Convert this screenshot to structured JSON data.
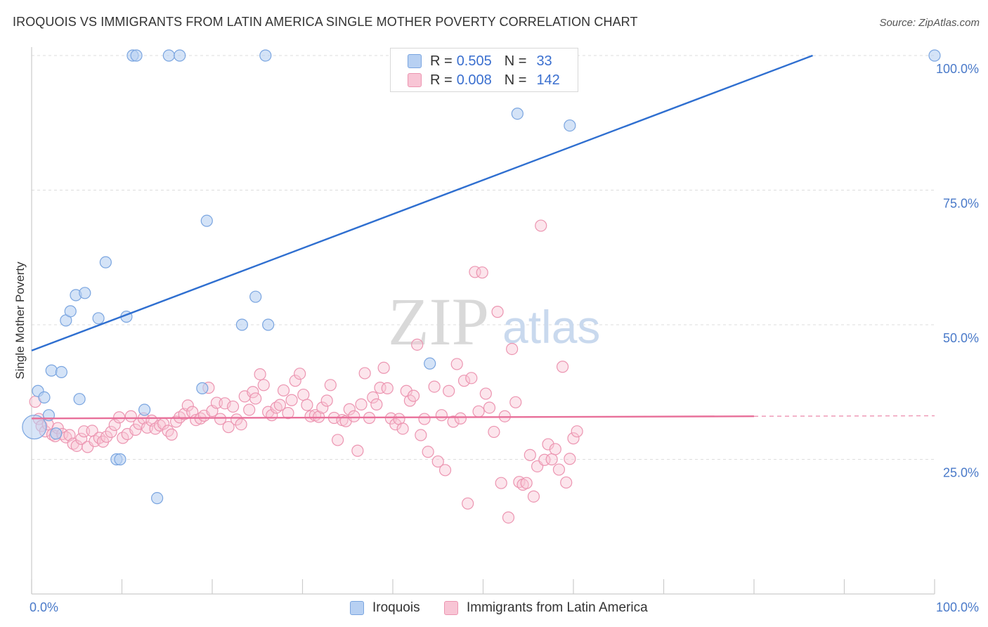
{
  "header": {
    "title": "IROQUOIS VS IMMIGRANTS FROM LATIN AMERICA SINGLE MOTHER POVERTY CORRELATION CHART",
    "source": "Source: ZipAtlas.com"
  },
  "watermark": {
    "zip": "ZIP",
    "atlas": "atlas"
  },
  "legend": {
    "r_label": "R =",
    "n_label": "N =",
    "rows": [
      {
        "r": "0.505",
        "n": "33"
      },
      {
        "r": "0.008",
        "n": "142"
      }
    ]
  },
  "colors": {
    "iroquois_fill": "#b7d0f2",
    "iroquois_stroke": "#7aa5e0",
    "iroquois_line": "#2f6fd0",
    "latin_fill": "#f8c5d5",
    "latin_stroke": "#ec95b1",
    "latin_line": "#e8709a",
    "tick_label": "#4a7ac9",
    "grid": "#dddddd"
  },
  "chart_data": {
    "type": "scatter",
    "ylabel": "Single Mother Poverty",
    "xlim": [
      0,
      100
    ],
    "ylim": [
      0,
      100
    ],
    "x_tick_labels": [
      "0.0%",
      "100.0%"
    ],
    "y_ticks": [
      25,
      50,
      75,
      100
    ],
    "y_tick_labels": [
      "25.0%",
      "50.0%",
      "75.0%",
      "100.0%"
    ],
    "grid": "horizontal dashed",
    "legend_position": "top-center",
    "series": [
      {
        "name": "Iroquois",
        "r": 0.505,
        "n": 33,
        "trend": {
          "x": [
            0,
            86.5
          ],
          "y": [
            45.2,
            100
          ]
        },
        "points": [
          [
            0.3,
            31
          ],
          [
            0.7,
            37.7
          ],
          [
            1.4,
            36.5
          ],
          [
            1.9,
            33.2
          ],
          [
            2.2,
            41.5
          ],
          [
            2.7,
            29.8
          ],
          [
            3.3,
            41.2
          ],
          [
            3.8,
            50.8
          ],
          [
            4.3,
            52.5
          ],
          [
            4.9,
            55.5
          ],
          [
            5.3,
            36.2
          ],
          [
            5.9,
            55.9
          ],
          [
            7.4,
            51.2
          ],
          [
            8.2,
            61.6
          ],
          [
            9.4,
            25
          ],
          [
            9.8,
            25
          ],
          [
            10.5,
            51.5
          ],
          [
            11.2,
            100
          ],
          [
            11.6,
            100
          ],
          [
            12.5,
            34.2
          ],
          [
            13.9,
            17.8
          ],
          [
            15.2,
            100
          ],
          [
            16.4,
            100
          ],
          [
            18.9,
            38.2
          ],
          [
            19.4,
            69.3
          ],
          [
            23.3,
            50
          ],
          [
            24.8,
            55.2
          ],
          [
            25.9,
            100
          ],
          [
            26.2,
            50
          ],
          [
            44.1,
            42.8
          ],
          [
            53.8,
            89.2
          ],
          [
            59.6,
            87
          ],
          [
            100,
            100
          ]
        ]
      },
      {
        "name": "Immigrants from Latin America",
        "r": 0.008,
        "n": 142,
        "trend": {
          "x": [
            0,
            80
          ],
          "y": [
            32.6,
            33.0
          ]
        },
        "trend_dashed": {
          "x": [
            80,
            100
          ],
          "y": [
            33.0,
            33.1
          ]
        },
        "points": [
          [
            0.4,
            35.7
          ],
          [
            0.8,
            32.5
          ],
          [
            1.1,
            31.2
          ],
          [
            1.5,
            30.2
          ],
          [
            1.8,
            31.5
          ],
          [
            2.3,
            29.6
          ],
          [
            2.6,
            29.3
          ],
          [
            2.9,
            30.8
          ],
          [
            3.4,
            29.7
          ],
          [
            3.8,
            29.1
          ],
          [
            4.2,
            29.5
          ],
          [
            4.6,
            27.9
          ],
          [
            5.0,
            27.5
          ],
          [
            5.5,
            28.8
          ],
          [
            5.8,
            30.2
          ],
          [
            6.2,
            27.3
          ],
          [
            6.7,
            30.3
          ],
          [
            7.0,
            28.4
          ],
          [
            7.5,
            29.0
          ],
          [
            7.9,
            28.3
          ],
          [
            8.3,
            29.2
          ],
          [
            8.8,
            30.1
          ],
          [
            9.2,
            31.4
          ],
          [
            9.7,
            32.8
          ],
          [
            10.1,
            29.0
          ],
          [
            10.6,
            29.7
          ],
          [
            11.0,
            33.0
          ],
          [
            11.5,
            30.5
          ],
          [
            11.9,
            31.6
          ],
          [
            12.4,
            32.6
          ],
          [
            12.8,
            30.9
          ],
          [
            13.3,
            32.2
          ],
          [
            13.7,
            30.7
          ],
          [
            14.2,
            31.3
          ],
          [
            14.6,
            31.6
          ],
          [
            15.1,
            30.3
          ],
          [
            15.5,
            29.6
          ],
          [
            16.0,
            32.0
          ],
          [
            16.4,
            32.8
          ],
          [
            16.9,
            33.4
          ],
          [
            17.3,
            35.0
          ],
          [
            17.8,
            33.8
          ],
          [
            18.2,
            32.3
          ],
          [
            18.7,
            32.6
          ],
          [
            19.1,
            33.1
          ],
          [
            19.6,
            38.3
          ],
          [
            20.0,
            34.0
          ],
          [
            20.5,
            35.5
          ],
          [
            20.9,
            32.5
          ],
          [
            21.4,
            35.4
          ],
          [
            21.8,
            31.0
          ],
          [
            22.3,
            34.8
          ],
          [
            22.7,
            32.4
          ],
          [
            23.2,
            31.5
          ],
          [
            23.6,
            36.7
          ],
          [
            24.1,
            34.2
          ],
          [
            24.5,
            37.5
          ],
          [
            24.8,
            36.3
          ],
          [
            25.3,
            40.8
          ],
          [
            25.7,
            38.8
          ],
          [
            26.2,
            33.8
          ],
          [
            26.6,
            33.2
          ],
          [
            27.1,
            34.6
          ],
          [
            27.5,
            35.1
          ],
          [
            27.9,
            37.8
          ],
          [
            28.4,
            33.6
          ],
          [
            28.8,
            36.0
          ],
          [
            29.2,
            39.6
          ],
          [
            29.7,
            40.9
          ],
          [
            30.1,
            37.0
          ],
          [
            30.5,
            35.1
          ],
          [
            30.9,
            33.0
          ],
          [
            31.4,
            33.2
          ],
          [
            31.8,
            32.9
          ],
          [
            32.2,
            34.6
          ],
          [
            32.7,
            35.9
          ],
          [
            33.1,
            38.8
          ],
          [
            33.5,
            32.7
          ],
          [
            33.9,
            28.6
          ],
          [
            34.4,
            32.3
          ],
          [
            34.8,
            32.1
          ],
          [
            35.2,
            34.3
          ],
          [
            35.7,
            33.0
          ],
          [
            36.1,
            26.6
          ],
          [
            36.5,
            35.2
          ],
          [
            36.9,
            41.0
          ],
          [
            37.4,
            32.7
          ],
          [
            37.8,
            36.5
          ],
          [
            38.2,
            35.2
          ],
          [
            38.6,
            38.3
          ],
          [
            39.0,
            42.0
          ],
          [
            39.4,
            38.2
          ],
          [
            39.8,
            32.6
          ],
          [
            40.3,
            31.5
          ],
          [
            40.7,
            32.5
          ],
          [
            41.1,
            30.7
          ],
          [
            41.5,
            37.7
          ],
          [
            41.9,
            35.9
          ],
          [
            42.3,
            36.8
          ],
          [
            42.7,
            46.3
          ],
          [
            43.1,
            29.5
          ],
          [
            43.5,
            32.5
          ],
          [
            43.9,
            26.4
          ],
          [
            44.6,
            38.5
          ],
          [
            45.0,
            24.6
          ],
          [
            45.4,
            33.2
          ],
          [
            45.8,
            23.0
          ],
          [
            46.2,
            37.7
          ],
          [
            46.7,
            32.0
          ],
          [
            47.1,
            42.7
          ],
          [
            47.5,
            32.6
          ],
          [
            47.9,
            39.6
          ],
          [
            48.3,
            16.8
          ],
          [
            48.7,
            40.1
          ],
          [
            49.1,
            59.8
          ],
          [
            49.5,
            33.9
          ],
          [
            49.9,
            59.7
          ],
          [
            50.3,
            37.2
          ],
          [
            50.7,
            34.6
          ],
          [
            51.2,
            30.1
          ],
          [
            51.6,
            52.4
          ],
          [
            52.0,
            20.6
          ],
          [
            52.4,
            33.0
          ],
          [
            52.8,
            14.2
          ],
          [
            53.2,
            45.5
          ],
          [
            53.6,
            35.6
          ],
          [
            54.0,
            20.8
          ],
          [
            54.4,
            20.3
          ],
          [
            54.8,
            20.6
          ],
          [
            55.2,
            25.8
          ],
          [
            55.6,
            18.1
          ],
          [
            56.0,
            23.7
          ],
          [
            56.4,
            68.4
          ],
          [
            56.8,
            24.9
          ],
          [
            57.2,
            27.8
          ],
          [
            57.6,
            25.0
          ],
          [
            58.0,
            26.9
          ],
          [
            58.4,
            23.1
          ],
          [
            58.8,
            42.2
          ],
          [
            59.2,
            20.7
          ],
          [
            59.6,
            25.1
          ],
          [
            60.0,
            28.9
          ],
          [
            60.4,
            30.2
          ]
        ]
      }
    ]
  }
}
